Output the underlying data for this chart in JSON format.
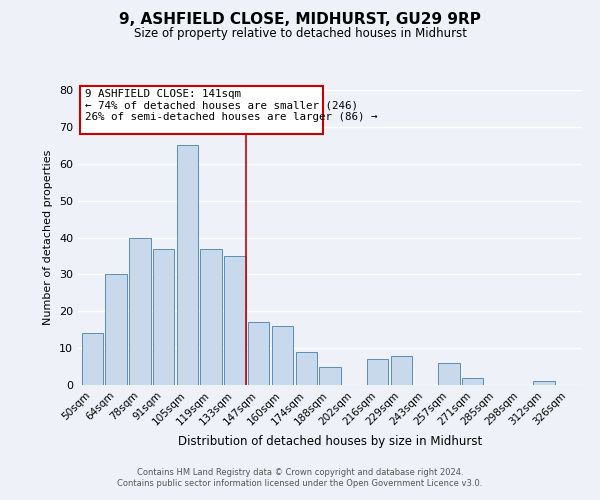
{
  "title": "9, ASHFIELD CLOSE, MIDHURST, GU29 9RP",
  "subtitle": "Size of property relative to detached houses in Midhurst",
  "xlabel": "Distribution of detached houses by size in Midhurst",
  "ylabel": "Number of detached properties",
  "categories": [
    "50sqm",
    "64sqm",
    "78sqm",
    "91sqm",
    "105sqm",
    "119sqm",
    "133sqm",
    "147sqm",
    "160sqm",
    "174sqm",
    "188sqm",
    "202sqm",
    "216sqm",
    "229sqm",
    "243sqm",
    "257sqm",
    "271sqm",
    "285sqm",
    "298sqm",
    "312sqm",
    "326sqm"
  ],
  "values": [
    14,
    30,
    40,
    37,
    65,
    37,
    35,
    17,
    16,
    9,
    5,
    0,
    7,
    8,
    0,
    6,
    2,
    0,
    0,
    1,
    0
  ],
  "bar_color": "#c9d9ec",
  "bar_edge_color": "#5b8db8",
  "ylim": [
    0,
    80
  ],
  "yticks": [
    0,
    10,
    20,
    30,
    40,
    50,
    60,
    70,
    80
  ],
  "vline_x": 6.45,
  "vline_color": "#cc0000",
  "annotation_line1": "9 ASHFIELD CLOSE: 141sqm",
  "annotation_line2": "← 74% of detached houses are smaller (246)",
  "annotation_line3": "26% of semi-detached houses are larger (86) →",
  "annotation_box_color": "#cc0000",
  "footer_line1": "Contains HM Land Registry data © Crown copyright and database right 2024.",
  "footer_line2": "Contains public sector information licensed under the Open Government Licence v3.0.",
  "background_color": "#eef2f8",
  "grid_color": "#ffffff"
}
